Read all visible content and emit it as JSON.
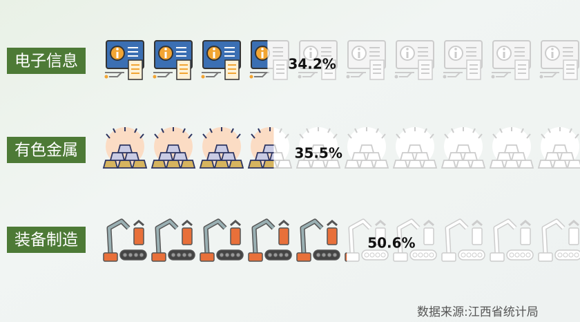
{
  "chart_data": {
    "type": "pictogram",
    "categories": [
      "电子信息",
      "有色金属",
      "装备制造"
    ],
    "values": [
      34.2,
      35.5,
      50.6
    ],
    "value_labels": [
      "34.2%",
      "35.5%",
      "50.6%"
    ],
    "xlim": [
      0,
      100
    ],
    "source": "数据来源:江西省统计局"
  }
}
